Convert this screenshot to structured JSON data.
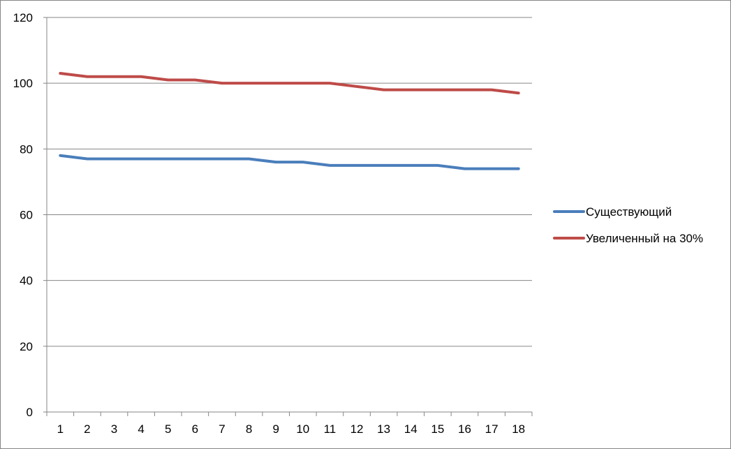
{
  "chart_data": {
    "type": "line",
    "title": "",
    "xlabel": "",
    "ylabel": "",
    "categories": [
      "1",
      "2",
      "3",
      "4",
      "5",
      "6",
      "7",
      "8",
      "9",
      "10",
      "11",
      "12",
      "13",
      "14",
      "15",
      "16",
      "17",
      "18"
    ],
    "ylim": [
      0,
      120
    ],
    "yticks": [
      0,
      20,
      40,
      60,
      80,
      100,
      120
    ],
    "grid": true,
    "legend_position": "right",
    "series": [
      {
        "name": "Существующий",
        "color": "#4a7ebb",
        "values": [
          78,
          77,
          77,
          77,
          77,
          77,
          77,
          77,
          76,
          76,
          75,
          75,
          75,
          75,
          75,
          74,
          74,
          74
        ]
      },
      {
        "name": "Увеличенный на 30%",
        "color": "#be4b48",
        "values": [
          103,
          102,
          102,
          102,
          101,
          101,
          100,
          100,
          100,
          100,
          100,
          99,
          98,
          98,
          98,
          98,
          98,
          97
        ]
      }
    ]
  }
}
